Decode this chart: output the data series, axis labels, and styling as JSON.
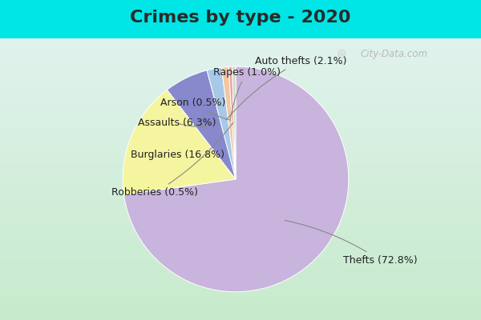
{
  "title": "Crimes by type - 2020",
  "slices": [
    {
      "label": "Thefts (72.8%)",
      "value": 72.8,
      "color": "#C8B4DC"
    },
    {
      "label": "Burglaries (16.8%)",
      "value": 16.8,
      "color": "#F5F5A0"
    },
    {
      "label": "Assaults (6.3%)",
      "value": 6.3,
      "color": "#8888CC"
    },
    {
      "label": "Auto thefts (2.1%)",
      "value": 2.1,
      "color": "#A8C8E8"
    },
    {
      "label": "Rapes (1.0%)",
      "value": 1.0,
      "color": "#F0C8A0"
    },
    {
      "label": "Arson (0.5%)",
      "value": 0.5,
      "color": "#F0A0A8"
    },
    {
      "label": "Robberies (0.5%)",
      "value": 0.5,
      "color": "#C8DCC0"
    }
  ],
  "bg_cyan": "#00E5E5",
  "title_fontsize": 16,
  "label_fontsize": 9,
  "watermark": "City-Data.com",
  "title_color": "#2a2a2a"
}
